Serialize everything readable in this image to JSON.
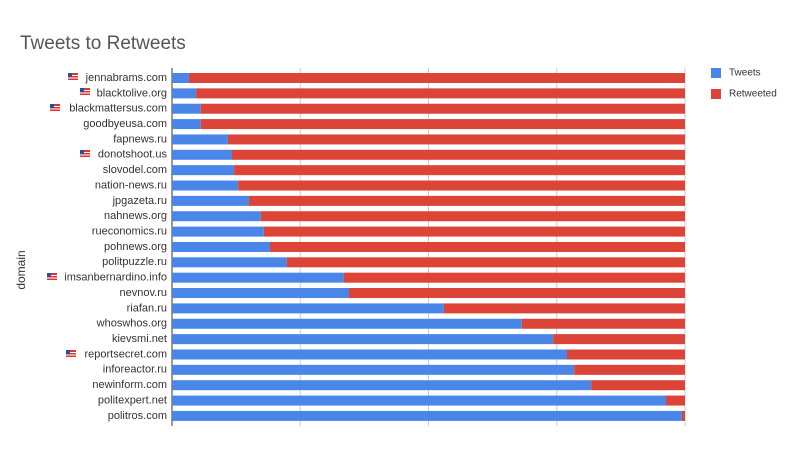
{
  "chart_data": {
    "type": "stacked_bar_horizontal",
    "title": "Tweets to Retweets",
    "y_axis_label": "domain",
    "categories": [
      "jennabrams.com",
      "blacktolive.org",
      "blackmattersus.com",
      "goodbyeusa.com",
      "fapnews.ru",
      "donotshoot.us",
      "slovodel.com",
      "nation-news.ru",
      "jpgazeta.ru",
      "nahnews.org",
      "rueconomics.ru",
      "pohnews.org",
      "politpuzzle.ru",
      "imsanbernardino.info",
      "nevnov.ru",
      "riafan.ru",
      "whoswhos.org",
      "kievsmi.net",
      "reportsecret.com",
      "inforeactor.ru",
      "newinform.com",
      "politexpert.net",
      "politros.com"
    ],
    "series": [
      {
        "name": "Tweets",
        "color": "#4a86e8",
        "values": [
          3.3,
          4.7,
          5.6,
          5.6,
          10.9,
          11.7,
          12.1,
          12.9,
          15.0,
          17.3,
          17.9,
          19.1,
          22.4,
          33.5,
          34.5,
          53.0,
          68.2,
          74.3,
          77.0,
          78.4,
          81.7,
          96.3,
          99.4
        ]
      },
      {
        "name": "Retweeted",
        "color": "#db4437",
        "values": [
          96.7,
          95.3,
          94.4,
          94.4,
          89.1,
          88.3,
          87.9,
          87.1,
          85.0,
          82.7,
          82.1,
          80.9,
          77.6,
          66.5,
          65.5,
          47.0,
          31.8,
          25.7,
          23.0,
          21.6,
          18.3,
          3.7,
          0.6
        ]
      }
    ],
    "xlim": [
      0,
      100
    ],
    "xticks": [
      0,
      25,
      50,
      75,
      100
    ],
    "grid": true,
    "legend": "right"
  }
}
